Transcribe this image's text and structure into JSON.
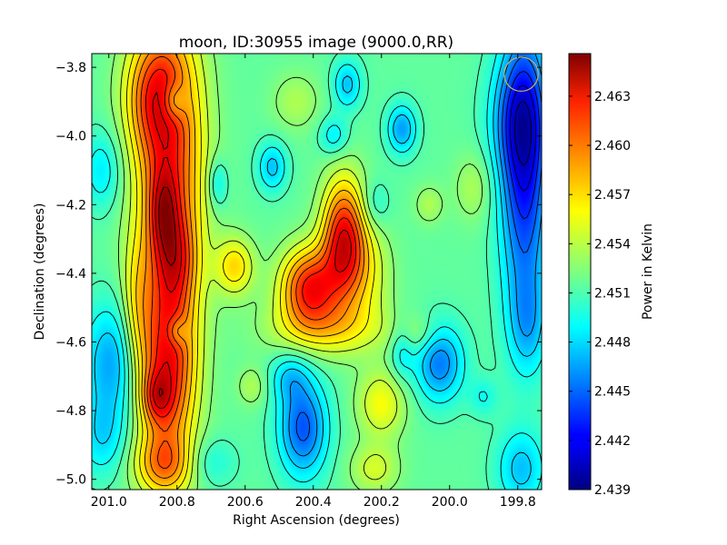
{
  "chart_data": {
    "type": "heatmap",
    "title": "moon, ID:30955 image (9000.0,RR)",
    "xlabel": "Right Ascension (degrees)",
    "ylabel": "Declination (degrees)",
    "colorbar_label": "Power in Kelvin",
    "x_range": [
      201.05,
      199.73
    ],
    "y_range": [
      -5.03,
      -3.76
    ],
    "x_ticks": [
      201.0,
      200.8,
      200.6,
      200.4,
      200.2,
      200.0,
      199.8
    ],
    "x_tick_labels": [
      "201.0",
      "200.8",
      "200.6",
      "200.4",
      "200.2",
      "200.0",
      "199.8"
    ],
    "y_ticks": [
      -3.8,
      -4.0,
      -4.2,
      -4.4,
      -4.6,
      -4.8,
      -5.0
    ],
    "y_tick_labels": [
      "−3.8",
      "−4.0",
      "−4.2",
      "−4.4",
      "−4.6",
      "−4.8",
      "−5.0"
    ],
    "colorbar_range": [
      2.439,
      2.4656
    ],
    "colorbar_ticks": [
      2.442,
      2.445,
      2.448,
      2.451,
      2.454,
      2.457,
      2.46,
      2.463
    ],
    "colorbar_tick_labels": [
      "2.442",
      "2.445",
      "2.448",
      "2.451",
      "2.454",
      "2.457",
      "2.460",
      "2.463"
    ],
    "colorbar_extent_labels": [
      "2.439",
      ""
    ],
    "colormap": "jet",
    "contours": true,
    "beam_marker": {
      "ra": 199.79,
      "dec": -3.82,
      "radius_deg": 0.05,
      "color": "#c8b45a"
    },
    "baseline": 2.4515,
    "features": [
      {
        "ra": 200.82,
        "dec": -4.08,
        "amp": 0.009,
        "sx": 0.07,
        "sy": 0.3
      },
      {
        "ra": 200.84,
        "dec": -4.22,
        "amp": 0.005,
        "sx": 0.03,
        "sy": 0.09
      },
      {
        "ra": 200.8,
        "dec": -4.36,
        "amp": 0.004,
        "sx": 0.04,
        "sy": 0.09
      },
      {
        "ra": 200.87,
        "dec": -3.88,
        "amp": 0.006,
        "sx": 0.06,
        "sy": 0.12
      },
      {
        "ra": 200.83,
        "dec": -4.68,
        "amp": 0.01,
        "sx": 0.06,
        "sy": 0.2
      },
      {
        "ra": 200.86,
        "dec": -4.76,
        "amp": 0.004,
        "sx": 0.03,
        "sy": 0.05
      },
      {
        "ra": 200.84,
        "dec": -4.96,
        "amp": 0.005,
        "sx": 0.06,
        "sy": 0.06
      },
      {
        "ra": 200.81,
        "dec": -3.9,
        "amp": -0.004,
        "sx": 0.025,
        "sy": 0.04
      },
      {
        "ra": 200.8,
        "dec": -4.57,
        "amp": -0.003,
        "sx": 0.02,
        "sy": 0.03
      },
      {
        "ra": 200.41,
        "dec": -4.44,
        "amp": 0.01,
        "sx": 0.06,
        "sy": 0.08
      },
      {
        "ra": 200.31,
        "dec": -4.3,
        "amp": 0.011,
        "sx": 0.045,
        "sy": 0.12
      },
      {
        "ra": 200.63,
        "dec": -4.38,
        "amp": 0.005,
        "sx": 0.04,
        "sy": 0.06
      },
      {
        "ra": 200.36,
        "dec": -4.56,
        "amp": 0.004,
        "sx": 0.12,
        "sy": 0.06
      },
      {
        "ra": 200.24,
        "dec": -4.4,
        "amp": 0.003,
        "sx": 0.05,
        "sy": 0.1
      },
      {
        "ra": 200.2,
        "dec": -4.78,
        "amp": 0.004,
        "sx": 0.05,
        "sy": 0.07
      },
      {
        "ra": 200.22,
        "dec": -4.97,
        "amp": 0.003,
        "sx": 0.05,
        "sy": 0.05
      },
      {
        "ra": 200.1,
        "dec": -4.58,
        "amp": 0.002,
        "sx": 0.05,
        "sy": 0.04
      },
      {
        "ra": 200.06,
        "dec": -4.2,
        "amp": 0.002,
        "sx": 0.03,
        "sy": 0.04
      },
      {
        "ra": 200.58,
        "dec": -4.73,
        "amp": 0.002,
        "sx": 0.03,
        "sy": 0.04
      },
      {
        "ra": 200.45,
        "dec": -3.9,
        "amp": 0.002,
        "sx": 0.05,
        "sy": 0.06
      },
      {
        "ra": 199.93,
        "dec": -4.15,
        "amp": 0.002,
        "sx": 0.04,
        "sy": 0.07
      },
      {
        "ra": 200.92,
        "dec": -4.5,
        "amp": 0.003,
        "sx": 0.03,
        "sy": 0.15
      },
      {
        "ra": 199.78,
        "dec": -4.08,
        "amp": -0.009,
        "sx": 0.05,
        "sy": 0.3
      },
      {
        "ra": 199.8,
        "dec": -3.95,
        "amp": -0.004,
        "sx": 0.06,
        "sy": 0.12
      },
      {
        "ra": 199.77,
        "dec": -4.55,
        "amp": -0.003,
        "sx": 0.04,
        "sy": 0.1
      },
      {
        "ra": 199.79,
        "dec": -4.97,
        "amp": -0.004,
        "sx": 0.05,
        "sy": 0.08
      },
      {
        "ra": 200.43,
        "dec": -4.85,
        "amp": -0.007,
        "sx": 0.05,
        "sy": 0.1
      },
      {
        "ra": 200.47,
        "dec": -4.7,
        "amp": -0.003,
        "sx": 0.04,
        "sy": 0.05
      },
      {
        "ra": 200.03,
        "dec": -4.66,
        "amp": -0.006,
        "sx": 0.05,
        "sy": 0.08
      },
      {
        "ra": 200.99,
        "dec": -4.66,
        "amp": -0.005,
        "sx": 0.06,
        "sy": 0.12
      },
      {
        "ra": 201.02,
        "dec": -4.88,
        "amp": -0.003,
        "sx": 0.05,
        "sy": 0.08
      },
      {
        "ra": 201.02,
        "dec": -4.1,
        "amp": -0.003,
        "sx": 0.04,
        "sy": 0.08
      },
      {
        "ra": 200.14,
        "dec": -3.98,
        "amp": -0.005,
        "sx": 0.03,
        "sy": 0.05
      },
      {
        "ra": 200.14,
        "dec": -4.62,
        "amp": -0.003,
        "sx": 0.025,
        "sy": 0.06
      },
      {
        "ra": 200.34,
        "dec": -4.0,
        "amp": -0.003,
        "sx": 0.03,
        "sy": 0.04
      },
      {
        "ra": 200.3,
        "dec": -3.85,
        "amp": -0.004,
        "sx": 0.03,
        "sy": 0.05
      },
      {
        "ra": 200.68,
        "dec": -4.14,
        "amp": -0.003,
        "sx": 0.02,
        "sy": 0.05
      },
      {
        "ra": 200.52,
        "dec": -4.09,
        "amp": -0.004,
        "sx": 0.03,
        "sy": 0.05
      },
      {
        "ra": 199.9,
        "dec": -4.76,
        "amp": -0.002,
        "sx": 0.03,
        "sy": 0.04
      },
      {
        "ra": 200.22,
        "dec": -4.2,
        "amp": -0.002,
        "sx": 0.03,
        "sy": 0.05
      },
      {
        "ra": 200.7,
        "dec": -4.95,
        "amp": -0.002,
        "sx": 0.05,
        "sy": 0.05
      }
    ]
  }
}
